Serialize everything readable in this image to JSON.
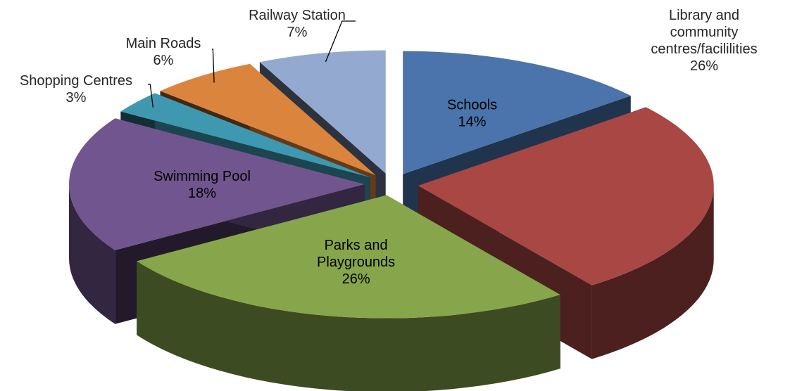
{
  "chart_data": {
    "type": "pie",
    "title": "",
    "exploded": true,
    "three_d": true,
    "slices": [
      {
        "label": "Schools",
        "label_lines": [
          "Schools"
        ],
        "value": 14,
        "value_text": "14%",
        "color": "#4A74AB",
        "label_position": "inside"
      },
      {
        "label": "Library and community centres/facililities",
        "label_lines": [
          "Library and",
          "community",
          "centres/facililities"
        ],
        "value": 26,
        "value_text": "26%",
        "color": "#A84744",
        "label_position": "outside"
      },
      {
        "label": "Parks and Playgrounds",
        "label_lines": [
          "Parks and",
          "Playgrounds"
        ],
        "value": 26,
        "value_text": "26%",
        "color": "#87A64B",
        "label_position": "inside"
      },
      {
        "label": "Swimming Pool",
        "label_lines": [
          "Swimming Pool"
        ],
        "value": 18,
        "value_text": "18%",
        "color": "#70558F",
        "label_position": "inside"
      },
      {
        "label": "Shopping Centres",
        "label_lines": [
          "Shopping Centres"
        ],
        "value": 3,
        "value_text": "3%",
        "color": "#3E99B0",
        "label_position": "outside"
      },
      {
        "label": "Main Roads",
        "label_lines": [
          "Main Roads"
        ],
        "value": 6,
        "value_text": "6%",
        "color": "#DB843D",
        "label_position": "outside"
      },
      {
        "label": "Railway Station",
        "label_lines": [
          "Railway Station"
        ],
        "value": 7,
        "value_text": "7%",
        "color": "#93A9D0",
        "label_position": "outside"
      }
    ]
  }
}
